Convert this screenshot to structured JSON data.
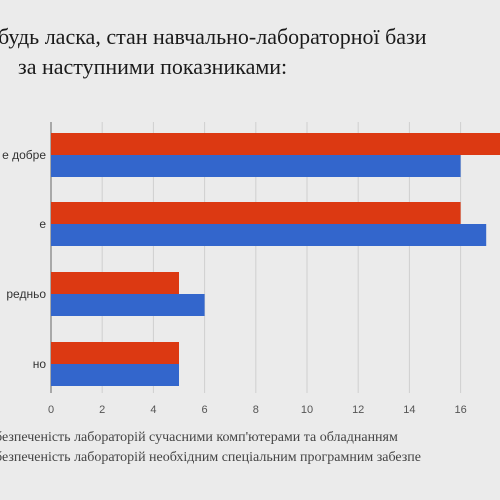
{
  "title": {
    "line1": "будь ласка, стан навчально-лабораторної бази",
    "line2": "за наступними показниками:"
  },
  "chart_data": {
    "type": "bar",
    "orientation": "horizontal",
    "categories": [
      "е добре",
      "е",
      "редньо",
      "но"
    ],
    "series": [
      {
        "name": "безпеченість лабораторій сучасними комп'ютерами та обладнанням",
        "color": "#dc3912",
        "values": [
          18,
          16,
          5,
          5
        ]
      },
      {
        "name": "безпеченість лабораторій необхідним спеціальним програмним забезпе",
        "color": "#3366cc",
        "values": [
          16,
          17,
          6,
          5
        ]
      }
    ],
    "xticks": [
      0,
      2,
      4,
      6,
      8,
      10,
      12,
      14,
      16
    ],
    "xlim": [
      0,
      18
    ],
    "grid": true,
    "legend_position": "bottom"
  }
}
